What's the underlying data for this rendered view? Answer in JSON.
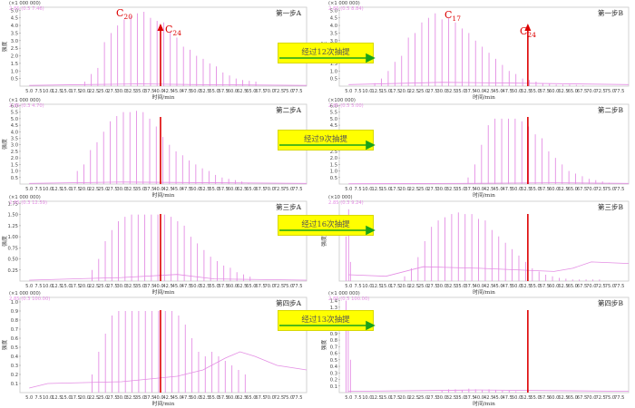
{
  "colors": {
    "trace": "#e48ee4",
    "marker": "#dd0000",
    "arrow": "#1aa31a",
    "label_bg": "#ffff00",
    "text": "#222222"
  },
  "axis_titles": {
    "y": "强度",
    "x": "时间/min"
  },
  "x_tick_labels": [
    "5.0",
    "7.5",
    "10.0",
    "12.5",
    "15.0",
    "17.5",
    "20.0",
    "22.5",
    "25.0",
    "27.5",
    "30.0",
    "32.5",
    "35.0",
    "37.5",
    "40.0",
    "42.5",
    "45.0",
    "47.5",
    "50.0",
    "52.5",
    "55.0",
    "57.5",
    "60.0",
    "62.5",
    "65.0",
    "67.5",
    "70.0",
    "72.5",
    "75.0",
    "77.5"
  ],
  "extraction_labels": [
    "经过12次抽提",
    "经过9次抽提",
    "经过16次抽提",
    "经过13次抽提"
  ],
  "chart_data": [
    {
      "id": "A1",
      "type": "line",
      "title": "第一步A",
      "scale_label": "(×1 000 000)",
      "info_label": "2.85 (0.5 7.46)",
      "y_ticks": [
        "0.5",
        "1.0",
        "1.5",
        "2.0",
        "2.5",
        "3.0",
        "3.5",
        "4.0",
        "4.5",
        "5.0"
      ],
      "ylim": [
        0,
        5.2
      ],
      "xlim": [
        2.5,
        80
      ],
      "marker_x": 40.5,
      "annotations": [
        {
          "base": "C",
          "sub": "20"
        },
        {
          "base": "C",
          "sub": "24"
        }
      ],
      "peaks": {
        "start": 20,
        "step": 1.78,
        "heights": [
          0.3,
          0.8,
          1.2,
          2.9,
          3.5,
          4.0,
          4.4,
          4.6,
          4.8,
          4.9,
          4.5,
          4.3,
          4.2,
          3.6,
          3.2,
          2.6,
          2.4,
          2.0,
          1.8,
          1.5,
          1.3,
          0.9,
          0.7,
          0.5,
          0.4,
          0.35,
          0.3
        ]
      },
      "baseline": [
        [
          5,
          0.05
        ],
        [
          20,
          0.1
        ],
        [
          35,
          0.15
        ],
        [
          50,
          0.1
        ],
        [
          80,
          0.05
        ]
      ]
    },
    {
      "id": "B1",
      "type": "line",
      "title": "第一步B",
      "scale_label": "(×1 000 000)",
      "info_label": "2.85 (0.5 8.84)",
      "y_ticks": [
        "0.5",
        "1.0",
        "1.5",
        "2.0",
        "2.5",
        "3.0",
        "3.5",
        "4.0",
        "4.5",
        "5.0"
      ],
      "ylim": [
        0,
        5.2
      ],
      "xlim": [
        2.5,
        80
      ],
      "marker_x": 53,
      "annotations": [
        {
          "base": "C",
          "sub": "17"
        },
        {
          "base": "C",
          "sub": "24"
        }
      ],
      "peaks": {
        "start": 12,
        "step": 1.8,
        "heights": [
          0.2,
          0.5,
          1.0,
          1.6,
          2.0,
          3.2,
          3.5,
          4.2,
          4.5,
          4.8,
          4.4,
          4.5,
          4.2,
          3.8,
          3.5,
          3.0,
          2.6,
          2.2,
          1.8,
          1.4,
          1.0,
          0.8,
          0.5,
          0.4,
          0.3,
          0.2,
          0.15,
          0.1,
          0.1,
          0.1,
          0.08,
          0.05
        ]
      },
      "baseline": [
        [
          5,
          0.1
        ],
        [
          30,
          0.25
        ],
        [
          50,
          0.2
        ],
        [
          80,
          0.1
        ]
      ]
    },
    {
      "id": "A2",
      "type": "line",
      "title": "第二步A",
      "scale_label": "(×1 000 000)",
      "info_label": "2.85 (0.3 4.70)",
      "y_ticks": [
        "0.5",
        "1.0",
        "1.5",
        "2.0",
        "2.5",
        "3.0",
        "3.5",
        "4.0",
        "4.5",
        "5.0",
        "5.5",
        "6.0"
      ],
      "ylim": [
        0,
        6.1
      ],
      "xlim": [
        2.5,
        80
      ],
      "marker_x": 40.5,
      "peaks": {
        "start": 18,
        "step": 1.78,
        "heights": [
          1.0,
          1.5,
          2.6,
          3.2,
          4.0,
          4.8,
          5.2,
          5.5,
          5.5,
          5.6,
          5.5,
          5.0,
          4.4,
          3.6,
          3.0,
          2.5,
          2.2,
          1.8,
          1.5,
          1.2,
          1.0,
          0.7,
          0.5,
          0.4,
          0.3,
          0.2,
          0.1
        ]
      },
      "baseline": [
        [
          5,
          0.05
        ],
        [
          30,
          0.15
        ],
        [
          80,
          0.05
        ]
      ]
    },
    {
      "id": "B2",
      "type": "line",
      "title": "第二步B",
      "scale_label": "(×100 000)",
      "info_label": "2.85 (0.5 5.00)",
      "y_ticks": [
        "0.5",
        "1.0",
        "1.5",
        "2.0",
        "2.5",
        "3.0",
        "3.5",
        "4.0",
        "4.5",
        "5.0",
        "5.5",
        "6.0"
      ],
      "ylim": [
        0,
        6.1
      ],
      "xlim": [
        2.5,
        80
      ],
      "marker_x": 53,
      "peaks": {
        "start": 37,
        "step": 1.8,
        "heights": [
          0.5,
          1.5,
          3.0,
          4.5,
          5.0,
          5.0,
          5.0,
          5.0,
          4.8,
          4.4,
          3.8,
          3.5,
          2.5,
          2.0,
          1.5,
          1.0,
          0.8,
          0.6,
          0.4,
          0.3,
          0.2,
          0.1
        ]
      },
      "baseline": [
        [
          5,
          0.02
        ],
        [
          35,
          0.05
        ],
        [
          60,
          0.1
        ],
        [
          80,
          0.05
        ]
      ]
    },
    {
      "id": "A3",
      "type": "line",
      "title": "第三步A",
      "scale_label": "(×1 000 000)",
      "info_label": "2.85 (0.3 12.59)",
      "y_ticks": [
        "0.25",
        "0.50",
        "0.75",
        "1.00",
        "1.25",
        "1.50",
        "1.75"
      ],
      "ylim": [
        0,
        1.8
      ],
      "xlim": [
        2.5,
        80
      ],
      "marker_x": 40.5,
      "peaks": {
        "start": 22,
        "step": 1.78,
        "heights": [
          0.25,
          0.5,
          0.9,
          1.15,
          1.35,
          1.45,
          1.5,
          1.5,
          1.5,
          1.5,
          1.5,
          1.5,
          1.45,
          1.35,
          1.25,
          1.0,
          0.85,
          0.7,
          0.55,
          0.45,
          0.35,
          0.3,
          0.2,
          0.15,
          0.1
        ]
      },
      "baseline": [
        [
          5,
          0.02
        ],
        [
          30,
          0.08
        ],
        [
          45,
          0.15
        ],
        [
          55,
          0.05
        ],
        [
          80,
          0.02
        ]
      ]
    },
    {
      "id": "B3",
      "type": "line",
      "title": "第三步B",
      "scale_label": "(×10 000)",
      "info_label": "2.85 (0.3 9.24)",
      "y_ticks": [],
      "ylim": [
        0,
        5
      ],
      "xlim": [
        2.5,
        80
      ],
      "marker_x": 53,
      "peaks": {
        "start": 20,
        "step": 1.8,
        "heights": [
          0.3,
          0.8,
          1.5,
          2.5,
          3.4,
          3.8,
          4.0,
          4.2,
          4.3,
          4.2,
          4.2,
          3.9,
          3.8,
          3.2,
          2.8,
          2.4,
          2.0,
          1.6,
          1.2,
          0.8,
          0.6,
          0.4,
          0.3,
          0.2,
          0.15,
          0.1,
          0.1,
          0.1,
          0.1,
          0.1
        ]
      },
      "extra_peaks": [
        [
          4.3,
          2.8
        ],
        [
          5.0,
          4.5
        ],
        [
          5.5,
          1.2
        ]
      ],
      "baseline": [
        [
          5,
          0.4
        ],
        [
          15,
          0.3
        ],
        [
          25,
          0.9
        ],
        [
          40,
          0.8
        ],
        [
          60,
          0.6
        ],
        [
          65,
          0.8
        ],
        [
          70,
          1.2
        ],
        [
          80,
          1.1
        ]
      ]
    },
    {
      "id": "A4",
      "type": "line",
      "title": "第四步A",
      "scale_label": "(×1 000 000)",
      "info_label": "2.85 (0.3 100.00)",
      "y_ticks": [
        "0.1",
        "0.2",
        "0.3",
        "0.4",
        "0.5",
        "0.6",
        "0.7",
        "0.8",
        "0.9",
        "1.0"
      ],
      "ylim": [
        0,
        1.05
      ],
      "xlim": [
        2.5,
        80
      ],
      "marker_x": 40.5,
      "peaks": {
        "start": 22,
        "step": 1.8,
        "heights": [
          0.2,
          0.45,
          0.65,
          0.85,
          0.9,
          0.9,
          0.9,
          0.9,
          0.9,
          0.9,
          0.9,
          0.9,
          0.9,
          0.85,
          0.75,
          0.6,
          0.45,
          0.4,
          0.45,
          0.4,
          0.35,
          0.3,
          0.25,
          0.2
        ]
      },
      "baseline": [
        [
          5,
          0.05
        ],
        [
          10,
          0.1
        ],
        [
          30,
          0.12
        ],
        [
          45,
          0.18
        ],
        [
          52,
          0.25
        ],
        [
          58,
          0.38
        ],
        [
          62,
          0.45
        ],
        [
          66,
          0.4
        ],
        [
          72,
          0.3
        ],
        [
          80,
          0.25
        ]
      ]
    },
    {
      "id": "B4",
      "type": "line",
      "title": "第四步B",
      "scale_label": "(×1 000 000)",
      "info_label": "2.85 (0.5 100.00)",
      "y_ticks": [
        "0.1",
        "0.2",
        "0.3",
        "0.4",
        "0.5",
        "0.6",
        "0.7",
        "0.8",
        "0.9",
        "1.0",
        "1.1",
        "1.2",
        "1.3",
        "1.4"
      ],
      "ylim": [
        0,
        1.45
      ],
      "xlim": [
        2.5,
        80
      ],
      "marker_x": 53,
      "peaks": {
        "start": 30,
        "step": 1.8,
        "heights": [
          0.03,
          0.05,
          0.05,
          0.04,
          0.06,
          0.05,
          0.04,
          0.05,
          0.04,
          0.03,
          0.03,
          0.02
        ]
      },
      "extra_peaks": [
        [
          4.3,
          1.4
        ],
        [
          4.9,
          1.2
        ],
        [
          5.5,
          0.5
        ]
      ],
      "baseline": [
        [
          5,
          0.02
        ],
        [
          40,
          0.04
        ],
        [
          80,
          0.02
        ]
      ]
    }
  ]
}
